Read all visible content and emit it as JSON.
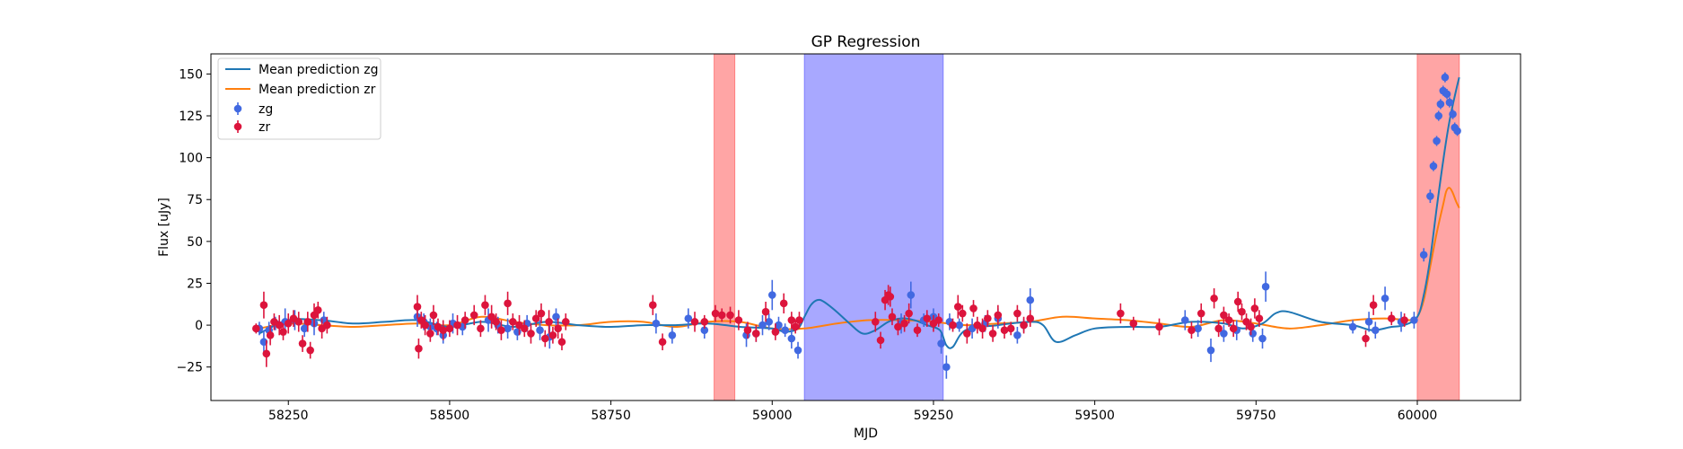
{
  "chart_data": {
    "type": "scatter",
    "title": "GP Regression",
    "xlabel": "MJD",
    "ylabel": "Flux [uJy]",
    "xlim": [
      58130,
      60160
    ],
    "ylim": [
      -45,
      162
    ],
    "xticks": [
      58250,
      58500,
      58750,
      59000,
      59250,
      59500,
      59750,
      60000
    ],
    "yticks": [
      -25,
      0,
      25,
      50,
      75,
      100,
      125,
      150
    ],
    "legend_position": "top-left",
    "colors": {
      "mean_zg": "#1f77b4",
      "mean_zr": "#ff7f0e",
      "points_zg": "#4169e1",
      "points_zr": "#dc143c",
      "shade_red": "#ff7f7f",
      "shade_blue": "#7f7fff"
    },
    "shaded_regions": [
      {
        "x0": 58910,
        "x1": 58942,
        "color": "red"
      },
      {
        "x0": 59050,
        "x1": 59265,
        "color": "blue"
      },
      {
        "x0": 60000,
        "x1": 60065,
        "color": "red"
      }
    ],
    "series": [
      {
        "name": "Mean prediction zg",
        "kind": "line",
        "x": [
          58205,
          58250,
          58300,
          58350,
          58400,
          58450,
          58500,
          58550,
          58600,
          58650,
          58700,
          58750,
          58800,
          58850,
          58900,
          58950,
          59000,
          59020,
          59040,
          59050,
          59060,
          59070,
          59080,
          59100,
          59120,
          59140,
          59160,
          59180,
          59200,
          59220,
          59240,
          59260,
          59270,
          59280,
          59300,
          59350,
          59400,
          59420,
          59440,
          59470,
          59500,
          59550,
          59600,
          59650,
          59700,
          59730,
          59760,
          59780,
          59800,
          59850,
          59900,
          59930,
          59960,
          59980,
          60000,
          60010,
          60020,
          60030,
          60040,
          60050,
          60060,
          60065
        ],
        "y": [
          -5,
          3,
          3,
          1,
          2,
          3,
          -1,
          2,
          -1,
          2,
          0,
          -1,
          0,
          0,
          1,
          -1,
          -2,
          -4,
          -2,
          5,
          12,
          15,
          14,
          8,
          1,
          -5,
          -3,
          2,
          4,
          3,
          0,
          -3,
          -12,
          -13,
          -3,
          0,
          2,
          0,
          -10,
          -6,
          -2,
          -1,
          -1,
          2,
          1,
          -2,
          1,
          7,
          8,
          2,
          0,
          -3,
          -1,
          0,
          5,
          18,
          40,
          70,
          98,
          122,
          140,
          148
        ]
      },
      {
        "name": "Mean prediction zr",
        "kind": "line",
        "x": [
          58205,
          58250,
          58300,
          58350,
          58400,
          58450,
          58500,
          58550,
          58600,
          58650,
          58700,
          58750,
          58800,
          58850,
          58900,
          58950,
          59000,
          59050,
          59100,
          59150,
          59200,
          59250,
          59300,
          59350,
          59400,
          59450,
          59500,
          59550,
          59600,
          59650,
          59700,
          59750,
          59800,
          59850,
          59900,
          59950,
          59990,
          60000,
          60010,
          60020,
          60030,
          60040,
          60045,
          60050,
          60055,
          60060,
          60065
        ],
        "y": [
          -2,
          1,
          0,
          -1,
          0,
          1,
          0,
          5,
          2,
          0,
          0,
          2,
          2,
          -1,
          2,
          2,
          -2,
          -2,
          1,
          3,
          3,
          2,
          0,
          1,
          2,
          5,
          4,
          3,
          1,
          -1,
          3,
          1,
          -2,
          0,
          3,
          4,
          3,
          5,
          15,
          35,
          55,
          72,
          80,
          82,
          79,
          74,
          70
        ]
      },
      {
        "name": "zg",
        "kind": "errorbar",
        "x": [
          58205,
          58212,
          58220,
          58230,
          58245,
          58260,
          58275,
          58290,
          58305,
          58450,
          58460,
          58470,
          58480,
          58490,
          58505,
          58520,
          58560,
          58575,
          58590,
          58605,
          58620,
          58640,
          58655,
          58665,
          58820,
          58845,
          58870,
          58895,
          58960,
          58975,
          58985,
          58995,
          59000,
          59010,
          59020,
          59030,
          59040,
          59200,
          59215,
          59235,
          59250,
          59262,
          59270,
          59275,
          59290,
          59310,
          59330,
          59350,
          59380,
          59390,
          59400,
          59640,
          59660,
          59680,
          59700,
          59720,
          59745,
          59760,
          59765,
          59900,
          59925,
          59935,
          59950,
          59975,
          59995,
          60010,
          60020,
          60025,
          60030,
          60033,
          60036,
          60040,
          60043,
          60046,
          60050,
          60055,
          60058,
          60062
        ],
        "y": [
          -2,
          -10,
          -3,
          1,
          2,
          3,
          -2,
          1,
          3,
          5,
          2,
          -1,
          -2,
          -6,
          1,
          -1,
          3,
          0,
          -2,
          -4,
          1,
          -3,
          -7,
          5,
          1,
          -6,
          4,
          -3,
          -6,
          -5,
          0,
          2,
          18,
          0,
          -3,
          -8,
          -15,
          1,
          18,
          3,
          5,
          -11,
          -25,
          2,
          0,
          -2,
          1,
          4,
          -6,
          0,
          15,
          3,
          -2,
          -15,
          -5,
          -3,
          -5,
          -8,
          23,
          -1,
          2,
          -3,
          16,
          2,
          3,
          42,
          77,
          95,
          110,
          125,
          132,
          140,
          148,
          138,
          133,
          126,
          118,
          116
        ],
        "err": [
          4,
          7,
          5,
          4,
          8,
          6,
          5,
          7,
          5,
          6,
          5,
          5,
          4,
          5,
          6,
          5,
          7,
          5,
          6,
          5,
          5,
          6,
          7,
          5,
          6,
          5,
          6,
          5,
          7,
          5,
          6,
          5,
          9,
          5,
          4,
          6,
          5,
          6,
          8,
          4,
          5,
          6,
          7,
          5,
          4,
          6,
          5,
          6,
          5,
          4,
          7,
          6,
          5,
          7,
          5,
          6,
          5,
          6,
          9,
          4,
          6,
          5,
          7,
          6,
          5,
          4,
          4,
          3,
          3,
          3,
          3,
          3,
          3,
          3,
          3,
          3,
          3,
          3
        ]
      },
      {
        "name": "zr",
        "kind": "errorbar",
        "x": [
          58200,
          58212,
          58216,
          58222,
          58228,
          58236,
          58242,
          58250,
          58258,
          58266,
          58272,
          58280,
          58284,
          58290,
          58296,
          58302,
          58310,
          58450,
          58452,
          58456,
          58462,
          58470,
          58475,
          58482,
          58490,
          58500,
          58512,
          58524,
          58538,
          58548,
          58555,
          58565,
          58572,
          58580,
          58590,
          58598,
          58608,
          58616,
          58626,
          58634,
          58642,
          58648,
          58654,
          58660,
          58668,
          58674,
          58680,
          58815,
          58830,
          58880,
          58895,
          58912,
          58922,
          58935,
          58948,
          58962,
          58975,
          58990,
          59005,
          59018,
          59030,
          59036,
          59042,
          59160,
          59168,
          59175,
          59180,
          59183,
          59186,
          59195,
          59205,
          59212,
          59225,
          59240,
          59250,
          59258,
          59280,
          59288,
          59295,
          59302,
          59312,
          59318,
          59326,
          59334,
          59342,
          59350,
          59360,
          59370,
          59380,
          59390,
          59400,
          59540,
          59560,
          59600,
          59650,
          59665,
          59685,
          59692,
          59700,
          59708,
          59715,
          59722,
          59728,
          59735,
          59742,
          59748,
          59755,
          59920,
          59932,
          59960,
          59980
        ],
        "y": [
          -2,
          12,
          -17,
          -6,
          2,
          0,
          -4,
          1,
          4,
          2,
          -11,
          2,
          -15,
          6,
          9,
          -2,
          0,
          11,
          -14,
          3,
          0,
          -5,
          6,
          -1,
          -3,
          -2,
          0,
          3,
          6,
          -2,
          12,
          5,
          2,
          -3,
          13,
          2,
          0,
          -2,
          -5,
          4,
          7,
          -8,
          2,
          -6,
          -2,
          -10,
          2,
          12,
          -10,
          2,
          2,
          7,
          6,
          6,
          3,
          -3,
          -5,
          8,
          -4,
          13,
          3,
          -1,
          3,
          2,
          -9,
          15,
          18,
          17,
          5,
          -1,
          1,
          7,
          -3,
          4,
          1,
          3,
          0,
          11,
          7,
          -5,
          10,
          0,
          -2,
          4,
          -5,
          6,
          -3,
          -2,
          7,
          0,
          4,
          7,
          1,
          -1,
          -3,
          7,
          16,
          -2,
          6,
          3,
          -2,
          14,
          8,
          2,
          -1,
          10,
          4,
          -8,
          12,
          4,
          3
        ],
        "err": [
          3,
          8,
          8,
          6,
          5,
          6,
          5,
          6,
          5,
          6,
          5,
          6,
          5,
          7,
          5,
          6,
          5,
          7,
          6,
          5,
          6,
          5,
          6,
          5,
          6,
          5,
          6,
          5,
          6,
          5,
          6,
          7,
          5,
          6,
          7,
          5,
          6,
          5,
          6,
          5,
          6,
          5,
          7,
          5,
          6,
          5,
          5,
          6,
          5,
          6,
          4,
          5,
          4,
          5,
          6,
          5,
          5,
          6,
          5,
          6,
          5,
          4,
          5,
          6,
          5,
          6,
          6,
          6,
          5,
          5,
          5,
          6,
          4,
          5,
          5,
          4,
          4,
          7,
          5,
          6,
          5,
          5,
          6,
          5,
          5,
          6,
          5,
          4,
          5,
          5,
          5,
          6,
          4,
          5,
          5,
          6,
          6,
          5,
          5,
          4,
          5,
          6,
          5,
          5,
          5,
          6,
          5,
          5,
          6,
          4,
          4
        ]
      }
    ]
  }
}
